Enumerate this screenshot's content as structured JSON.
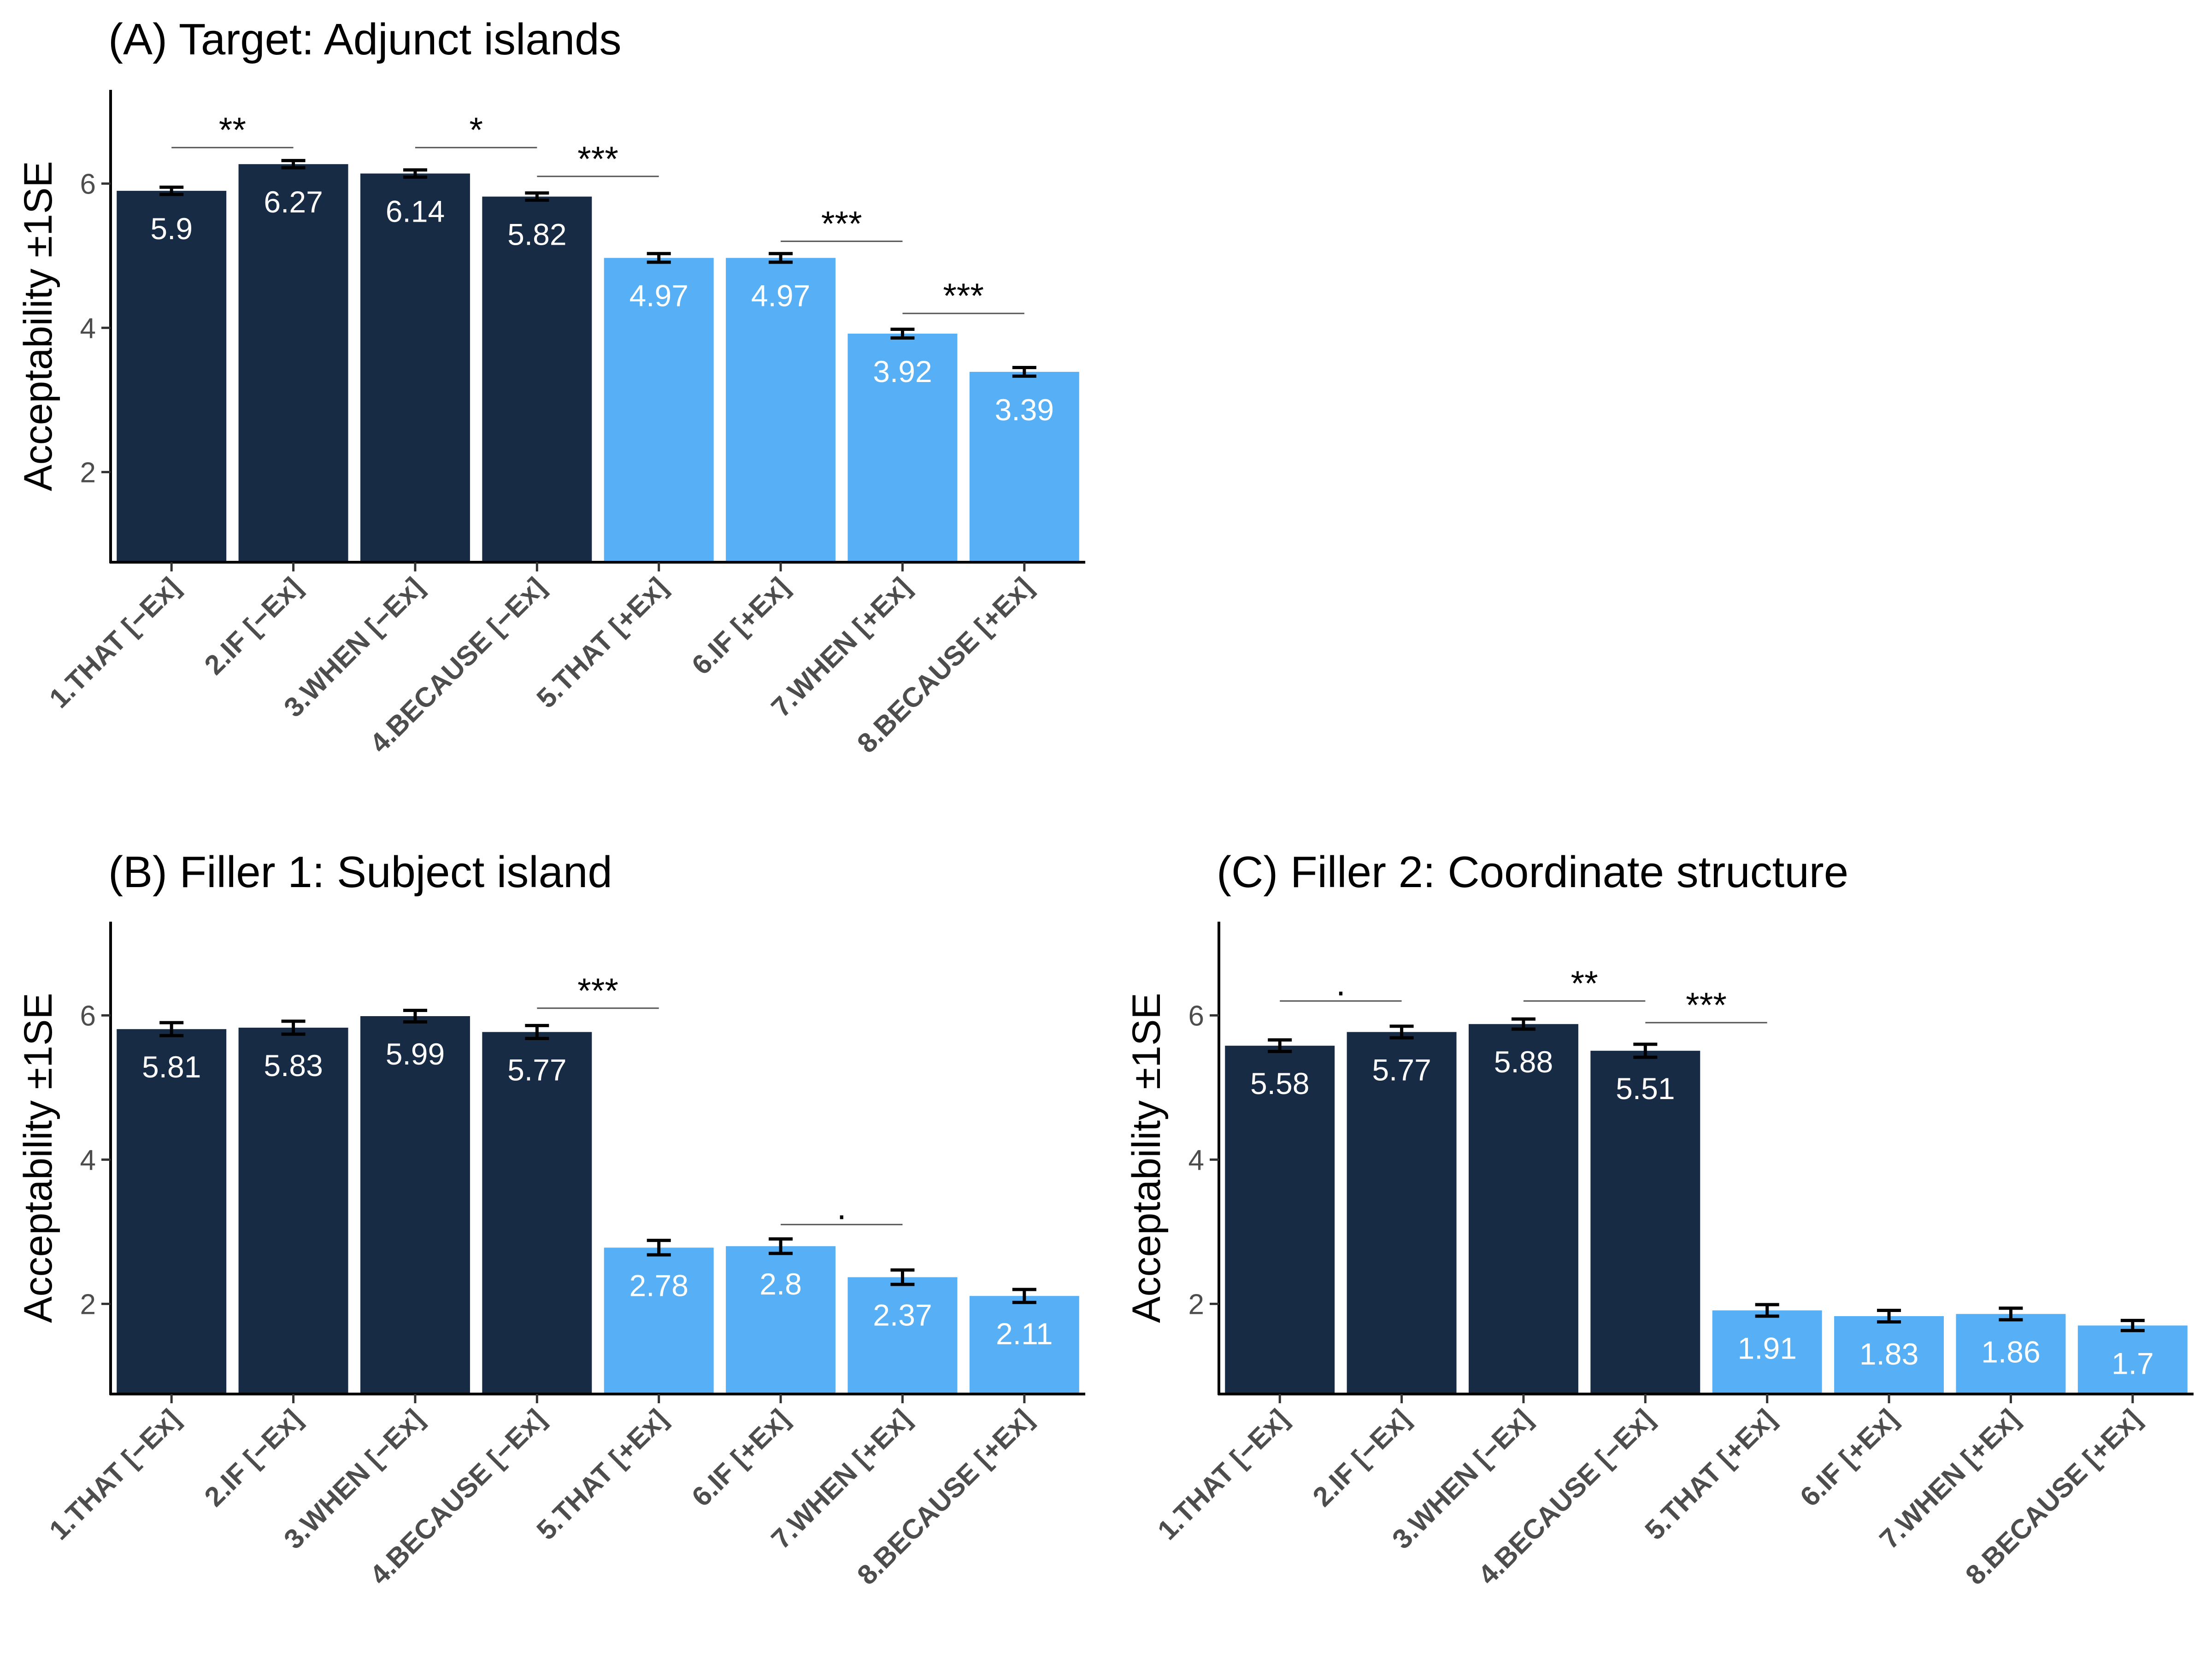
{
  "chart_data": [
    {
      "type": "bar",
      "title": "(A) Target: Adjunct islands",
      "ylabel": "Acceptability ±1SE",
      "ylim": [
        0.75,
        7.3
      ],
      "yticks": [
        2,
        4,
        6
      ],
      "categories": [
        "1.THAT [−Ex]",
        "2.IF [−Ex]",
        "3.WHEN [−Ex]",
        "4.BECAUSE [−Ex]",
        "5.THAT [+Ex]",
        "6.IF [+Ex]",
        "7.WHEN [+Ex]",
        "8.BECAUSE [+Ex]"
      ],
      "values": [
        5.9,
        6.27,
        6.14,
        5.82,
        4.97,
        4.97,
        3.92,
        3.39
      ],
      "value_labels": [
        "5.9",
        "6.27",
        "6.14",
        "5.82",
        "4.97",
        "4.97",
        "3.92",
        "3.39"
      ],
      "se": [
        0.05,
        0.05,
        0.05,
        0.05,
        0.06,
        0.06,
        0.06,
        0.06
      ],
      "bar_colors": [
        "#172b45",
        "#172b45",
        "#172b45",
        "#172b45",
        "#57aff5",
        "#57aff5",
        "#57aff5",
        "#57aff5"
      ],
      "comparisons": [
        {
          "from": 0,
          "to": 1,
          "y": 6.5,
          "label": "**"
        },
        {
          "from": 2,
          "to": 3,
          "y": 6.5,
          "label": "*"
        },
        {
          "from": 3,
          "to": 4,
          "y": 6.1,
          "label": "***"
        },
        {
          "from": 5,
          "to": 6,
          "y": 5.2,
          "label": "***"
        },
        {
          "from": 6,
          "to": 7,
          "y": 4.2,
          "label": "***"
        }
      ]
    },
    {
      "type": "bar",
      "title": "(B) Filler 1: Subject island",
      "ylabel": "Acceptability ±1SE",
      "ylim": [
        0.75,
        7.3
      ],
      "yticks": [
        2,
        4,
        6
      ],
      "categories": [
        "1.THAT [−Ex]",
        "2.IF [−Ex]",
        "3.WHEN [−Ex]",
        "4.BECAUSE [−Ex]",
        "5.THAT [+Ex]",
        "6.IF [+Ex]",
        "7.WHEN [+Ex]",
        "8.BECAUSE [+Ex]"
      ],
      "values": [
        5.81,
        5.83,
        5.99,
        5.77,
        2.78,
        2.8,
        2.37,
        2.11
      ],
      "value_labels": [
        "5.81",
        "5.83",
        "5.99",
        "5.77",
        "2.78",
        "2.8",
        "2.37",
        "2.11"
      ],
      "se": [
        0.09,
        0.09,
        0.08,
        0.09,
        0.1,
        0.1,
        0.1,
        0.09
      ],
      "bar_colors": [
        "#172b45",
        "#172b45",
        "#172b45",
        "#172b45",
        "#57aff5",
        "#57aff5",
        "#57aff5",
        "#57aff5"
      ],
      "comparisons": [
        {
          "from": 3,
          "to": 4,
          "y": 6.1,
          "label": "***"
        },
        {
          "from": 5,
          "to": 6,
          "y": 3.1,
          "label": "."
        }
      ]
    },
    {
      "type": "bar",
      "title": "(C) Filler 2: Coordinate structure",
      "ylabel": "Acceptability ±1SE",
      "ylim": [
        0.75,
        7.3
      ],
      "yticks": [
        2,
        4,
        6
      ],
      "categories": [
        "1.THAT [−Ex]",
        "2.IF [−Ex]",
        "3.WHEN [−Ex]",
        "4.BECAUSE [−Ex]",
        "5.THAT [+Ex]",
        "6.IF [+Ex]",
        "7.WHEN [+Ex]",
        "8.BECAUSE [+Ex]"
      ],
      "values": [
        5.58,
        5.77,
        5.88,
        5.51,
        1.91,
        1.83,
        1.86,
        1.7
      ],
      "value_labels": [
        "5.58",
        "5.77",
        "5.88",
        "5.51",
        "1.91",
        "1.83",
        "1.86",
        "1.7"
      ],
      "se": [
        0.08,
        0.08,
        0.07,
        0.09,
        0.08,
        0.08,
        0.08,
        0.07
      ],
      "bar_colors": [
        "#172b45",
        "#172b45",
        "#172b45",
        "#172b45",
        "#57aff5",
        "#57aff5",
        "#57aff5",
        "#57aff5"
      ],
      "comparisons": [
        {
          "from": 0,
          "to": 1,
          "y": 6.2,
          "label": "."
        },
        {
          "from": 2,
          "to": 3,
          "y": 6.2,
          "label": "**"
        },
        {
          "from": 3,
          "to": 4,
          "y": 5.9,
          "label": "***"
        }
      ]
    }
  ]
}
